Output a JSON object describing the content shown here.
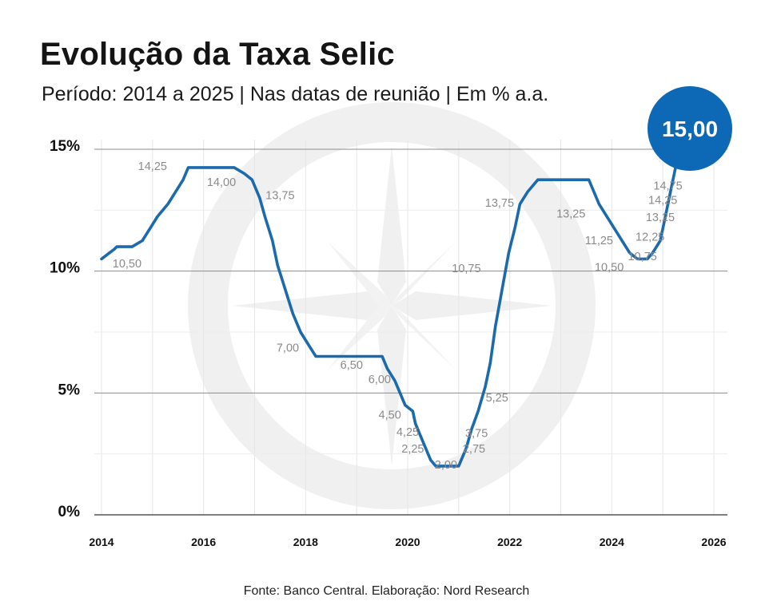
{
  "header": {
    "title": "Evolução da Taxa Selic",
    "subtitle": "Período: 2014 a 2025 | Nas datas de reunião | Em % a.a."
  },
  "source": "Fonte: Banco Central. Elaboração: Nord Research",
  "callout": {
    "label": "15,00",
    "value": 15.0
  },
  "colors": {
    "line": "#1b6aae",
    "callout": "#0d69b5",
    "watermark": "#f0f0f0"
  },
  "watermark_icon": "compass-rose-icon",
  "chart_data": {
    "type": "line",
    "title": "Evolução da Taxa Selic",
    "subtitle": "Período: 2014 a 2025 | Nas datas de reunião | Em % a.a.",
    "xlim": [
      2014,
      2026
    ],
    "ylim": [
      0,
      15
    ],
    "x_ticks": [
      {
        "value": 2014,
        "label": "2014"
      },
      {
        "value": 2016,
        "label": "2016"
      },
      {
        "value": 2018,
        "label": "2018"
      },
      {
        "value": 2020,
        "label": "2020"
      },
      {
        "value": 2022,
        "label": "2022"
      },
      {
        "value": 2024,
        "label": "2024"
      },
      {
        "value": 2026,
        "label": "2026"
      }
    ],
    "y_ticks": [
      {
        "value": 0,
        "label": "0%"
      },
      {
        "value": 5,
        "label": "5%"
      },
      {
        "value": 10,
        "label": "10%"
      },
      {
        "value": 15,
        "label": "15%"
      }
    ],
    "grid": true,
    "series": [
      {
        "values": [
          [
            2014.0,
            10.5
          ],
          [
            2014.25,
            10.9
          ],
          [
            2014.3,
            11.0
          ],
          [
            2014.6,
            11.0
          ],
          [
            2014.8,
            11.25
          ],
          [
            2015.1,
            12.25
          ],
          [
            2015.3,
            12.75
          ],
          [
            2015.45,
            13.25
          ],
          [
            2015.6,
            13.75
          ],
          [
            2015.7,
            14.25
          ],
          [
            2016.6,
            14.25
          ],
          [
            2016.8,
            14.0
          ],
          [
            2016.95,
            13.75
          ],
          [
            2017.1,
            13.0
          ],
          [
            2017.2,
            12.25
          ],
          [
            2017.35,
            11.25
          ],
          [
            2017.45,
            10.25
          ],
          [
            2017.6,
            9.25
          ],
          [
            2017.75,
            8.25
          ],
          [
            2017.9,
            7.5
          ],
          [
            2018.05,
            7.0
          ],
          [
            2018.2,
            6.5
          ],
          [
            2019.5,
            6.5
          ],
          [
            2019.6,
            6.0
          ],
          [
            2019.75,
            5.5
          ],
          [
            2019.85,
            5.0
          ],
          [
            2019.95,
            4.5
          ],
          [
            2020.1,
            4.25
          ],
          [
            2020.15,
            3.75
          ],
          [
            2020.3,
            3.0
          ],
          [
            2020.45,
            2.25
          ],
          [
            2020.55,
            2.0
          ],
          [
            2021.0,
            2.0
          ],
          [
            2021.15,
            2.75
          ],
          [
            2021.25,
            3.5
          ],
          [
            2021.38,
            4.25
          ],
          [
            2021.52,
            5.25
          ],
          [
            2021.62,
            6.25
          ],
          [
            2021.72,
            7.75
          ],
          [
            2021.85,
            9.25
          ],
          [
            2021.98,
            10.75
          ],
          [
            2022.1,
            11.75
          ],
          [
            2022.2,
            12.75
          ],
          [
            2022.35,
            13.25
          ],
          [
            2022.55,
            13.75
          ],
          [
            2023.55,
            13.75
          ],
          [
            2023.65,
            13.25
          ],
          [
            2023.75,
            12.75
          ],
          [
            2023.9,
            12.25
          ],
          [
            2024.05,
            11.75
          ],
          [
            2024.2,
            11.25
          ],
          [
            2024.35,
            10.75
          ],
          [
            2024.5,
            10.5
          ],
          [
            2024.7,
            10.5
          ],
          [
            2024.8,
            10.75
          ],
          [
            2024.95,
            11.25
          ],
          [
            2025.05,
            12.25
          ],
          [
            2025.15,
            13.25
          ],
          [
            2025.25,
            14.25
          ],
          [
            2025.35,
            14.75
          ],
          [
            2025.45,
            15.0
          ]
        ]
      }
    ],
    "data_labels": [
      {
        "text": "14,25",
        "x": 2015.0,
        "y": 14.15
      },
      {
        "text": "10,50",
        "x": 2014.5,
        "y": 10.15
      },
      {
        "text": "14,00",
        "x": 2016.35,
        "y": 13.5
      },
      {
        "text": "13,75",
        "x": 2017.5,
        "y": 12.95
      },
      {
        "text": "7,00",
        "x": 2017.65,
        "y": 6.7
      },
      {
        "text": "6,50",
        "x": 2018.9,
        "y": 6.0
      },
      {
        "text": "6,00",
        "x": 2019.45,
        "y": 5.4
      },
      {
        "text": "4,50",
        "x": 2019.65,
        "y": 3.95
      },
      {
        "text": "4,25",
        "x": 2020.0,
        "y": 3.25
      },
      {
        "text": "2,25",
        "x": 2020.1,
        "y": 2.55
      },
      {
        "text": "2,00",
        "x": 2020.75,
        "y": 1.9
      },
      {
        "text": "2,75",
        "x": 2021.3,
        "y": 2.55
      },
      {
        "text": "3,75",
        "x": 2021.35,
        "y": 3.2
      },
      {
        "text": "5,25",
        "x": 2021.75,
        "y": 4.65
      },
      {
        "text": "10,75",
        "x": 2021.15,
        "y": 9.95
      },
      {
        "text": "13,75",
        "x": 2021.8,
        "y": 12.65
      },
      {
        "text": "13,25",
        "x": 2023.2,
        "y": 12.2
      },
      {
        "text": "11,25",
        "x": 2023.75,
        "y": 11.1
      },
      {
        "text": "10,50",
        "x": 2023.95,
        "y": 10.0
      },
      {
        "text": "10,75",
        "x": 2024.6,
        "y": 10.45
      },
      {
        "text": "12,25",
        "x": 2024.75,
        "y": 11.25
      },
      {
        "text": "13,25",
        "x": 2024.95,
        "y": 12.05
      },
      {
        "text": "14,25",
        "x": 2025.0,
        "y": 12.75
      },
      {
        "text": "14,75",
        "x": 2025.1,
        "y": 13.35
      }
    ]
  }
}
